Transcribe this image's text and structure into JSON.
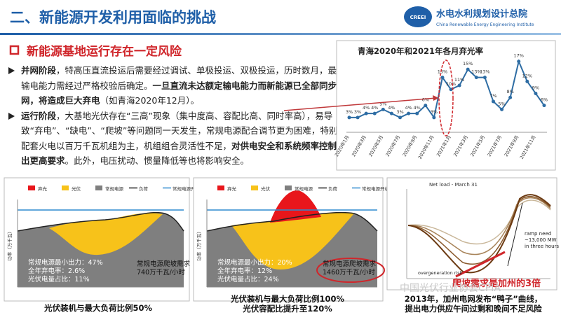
{
  "header": {
    "title": "二、新能源开发利用面临的挑战",
    "logo_badge": "CREEI",
    "logo_cn": "水电水利规划设计总院",
    "logo_en": "China Renewable Energy Engineering Institute"
  },
  "section_title": "新能源基地运行存在一定风险",
  "bullets": [
    [
      {
        "text": "并网阶段",
        "bold": true
      },
      {
        "text": "，特高压直流投运后需要经过调试、单极投运、双极投运，历时数月，最大输电能力需经过严格校验后确定。",
        "bold": false
      },
      {
        "text": "一旦直流未达额定输电能力而新能源已全部同步并网，将造成巨大弃电",
        "bold": true
      },
      {
        "text": "（如青海2020年12月）。",
        "bold": false
      }
    ],
    [
      {
        "text": "运行阶段",
        "bold": true
      },
      {
        "text": "，大基地光伏存在“三高”现象（集中度高、容配比高、同时率高），易导致“弃电”、“缺电”、“爬坡”等问题同一天发生，常规电源配合调节更为困难，特别是配套火电以百万千瓦机组为主，机组组合灵活性不足，",
        "bold": false
      },
      {
        "text": "对供电安全和系统频率控制提出更高要求",
        "bold": true
      },
      {
        "text": "。此外，电压扰动、惯量降低等也将影响安全。",
        "bold": false
      }
    ]
  ],
  "chart_data": {
    "type": "line",
    "title": "青海2020年和2021年各月弃光率",
    "categories": [
      "2020年1月",
      null,
      "2020年3月",
      null,
      "2020年5月",
      null,
      "2020年7月",
      null,
      "2020年9月",
      null,
      "2020年11月",
      null,
      "2021年1月",
      null,
      "2021年3月",
      null,
      "2021年5月",
      null,
      "2021年7月",
      null,
      "2021年9月",
      null,
      "2021年11月",
      null
    ],
    "values": [
      3,
      3,
      4,
      4,
      5,
      4,
      3,
      4,
      4,
      6,
      3,
      13,
      10,
      11,
      15,
      13,
      13,
      7,
      5,
      8,
      17,
      12,
      9,
      6
    ],
    "value_labels": [
      "3%",
      "3%",
      "4%",
      "4%",
      "5%",
      "4%",
      "3%",
      "4%",
      "4%",
      "6%",
      "3%",
      "13%",
      "10%",
      "11%",
      "15%",
      "13%",
      "13%",
      "7%",
      "5%",
      "8%",
      "17%",
      "12%",
      "9%",
      "6%"
    ],
    "color": "#2e6da4",
    "ylim": [
      0,
      18
    ]
  },
  "panels": [
    {
      "legend": [
        "弃光",
        "光伏",
        "常规电源",
        "负荷",
        "常规电源开机"
      ],
      "y_label": "功率（万千瓦）",
      "stats": [
        "常规电源最小出力：47%",
        "全年弃电率：2.6%",
        "光伏电量占比：11%"
      ],
      "ramp": [
        "常规电源爬坡需求",
        "740万千瓦/小时"
      ],
      "caption": [
        "光伏装机与最大负荷比例50%"
      ]
    },
    {
      "legend": [
        "弃光",
        "光伏",
        "常规电源",
        "负荷",
        "常规电源开机"
      ],
      "y_label": "功率（万千瓦）",
      "stats": [
        "常规电源最小出力：20%",
        "全年弃电率：12%",
        "光伏电量占比：24%"
      ],
      "ramp": [
        "常规电源爬坡需求",
        "1460万千瓦/小时"
      ],
      "caption": [
        "光伏装机与最大负荷比例100%",
        "光伏容配比提升至120%"
      ]
    }
  ],
  "duck": {
    "title": "Net load - March 31",
    "ramp": [
      "ramp need",
      "~13,000 MW",
      "in three hours"
    ],
    "overgen": "overgeneration risk",
    "highlight": "爬坡需求是加州的3倍",
    "caption": [
      "2013年，加州电网发布“鸭子”曲线，",
      "提出电力供应午间过剩和晚间不足风险"
    ]
  },
  "watermark": "中国光伏行业协会CPIA"
}
